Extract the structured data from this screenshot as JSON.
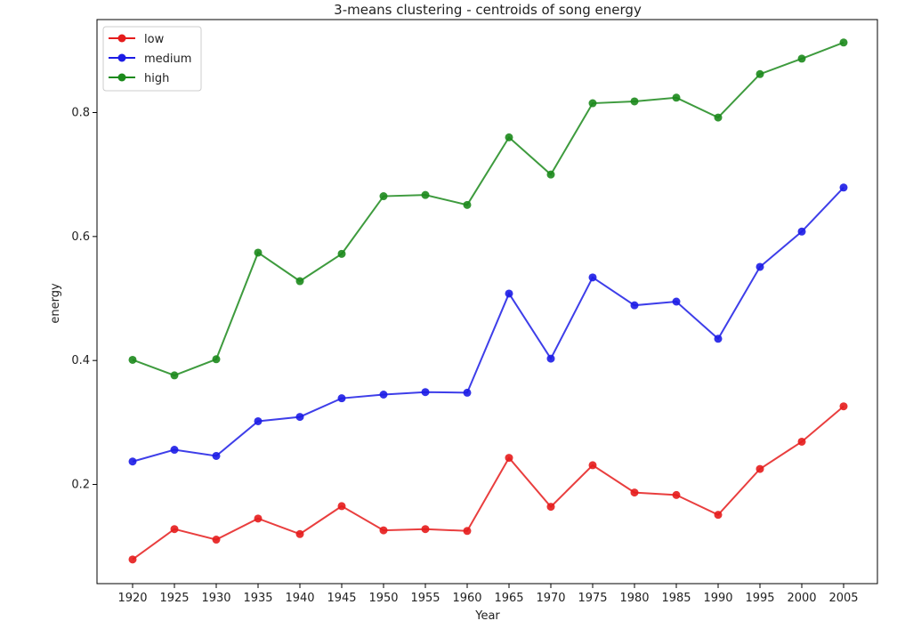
{
  "chart_data": {
    "type": "line",
    "title": "3-means clustering - centroids of song energy",
    "xlabel": "Year",
    "ylabel": "energy",
    "x": [
      1920,
      1925,
      1930,
      1935,
      1940,
      1945,
      1950,
      1955,
      1960,
      1965,
      1970,
      1975,
      1980,
      1985,
      1990,
      1995,
      2000,
      2005
    ],
    "y_ticks": [
      0.2,
      0.4,
      0.6,
      0.8
    ],
    "ylim": [
      0.04,
      0.95
    ],
    "grid": false,
    "legend_position": "top-left",
    "series": [
      {
        "name": "low",
        "color": "#e51c1c",
        "marker": "circle",
        "values": [
          0.079,
          0.128,
          0.111,
          0.145,
          0.12,
          0.165,
          0.126,
          0.128,
          0.125,
          0.243,
          0.164,
          0.231,
          0.187,
          0.183,
          0.151,
          0.225,
          0.269,
          0.326
        ]
      },
      {
        "name": "medium",
        "color": "#1c1ce5",
        "marker": "circle",
        "values": [
          0.237,
          0.256,
          0.246,
          0.302,
          0.309,
          0.339,
          0.345,
          0.349,
          0.348,
          0.508,
          0.403,
          0.534,
          0.489,
          0.495,
          0.435,
          0.551,
          0.608,
          0.679
        ]
      },
      {
        "name": "high",
        "color": "#1c8a1c",
        "marker": "circle",
        "values": [
          0.401,
          0.376,
          0.402,
          0.574,
          0.528,
          0.572,
          0.665,
          0.667,
          0.651,
          0.76,
          0.7,
          0.815,
          0.818,
          0.824,
          0.792,
          0.862,
          0.887,
          0.913
        ]
      }
    ]
  }
}
